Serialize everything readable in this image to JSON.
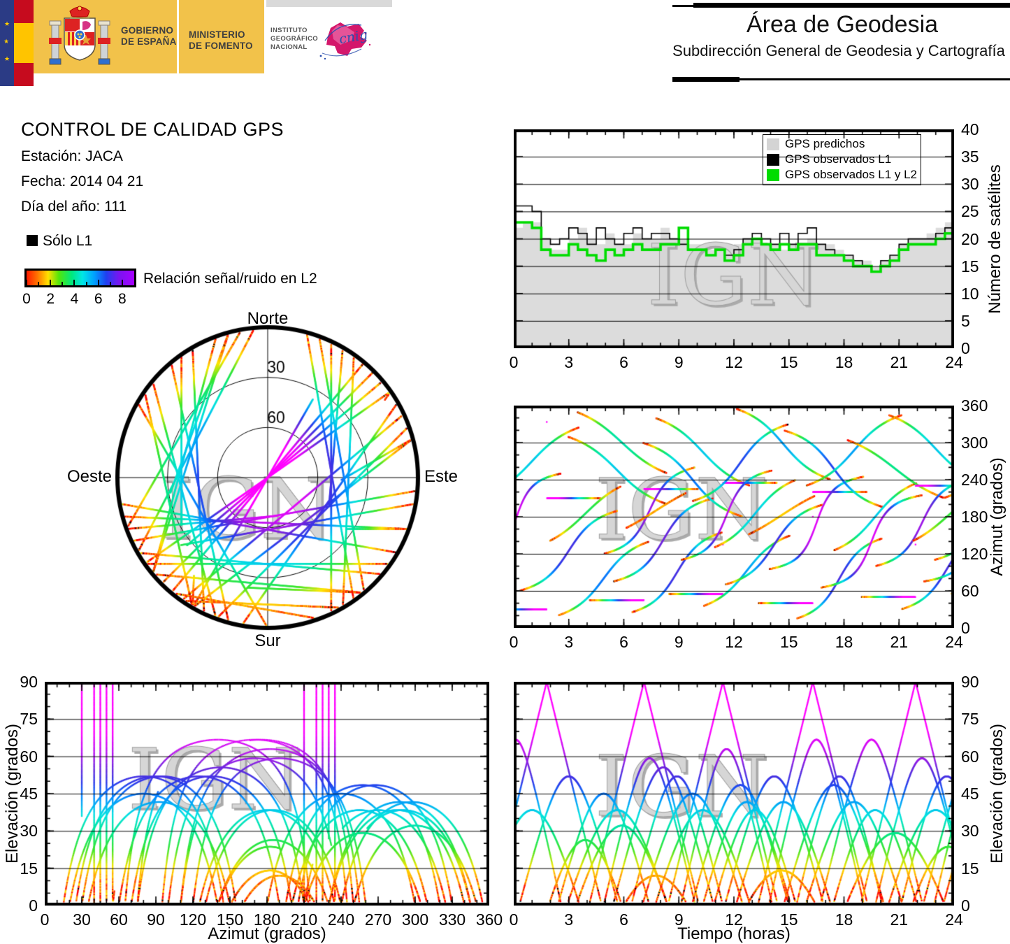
{
  "header": {
    "gobierno": [
      "GOBIERNO",
      "DE ESPAÑA"
    ],
    "ministerio": [
      "MINISTERIO",
      "DE FOMENTO"
    ],
    "instituto": [
      "INSTITUTO",
      "GEOGRÁFICO",
      "NACIONAL"
    ],
    "cnig": "cnig",
    "area_title": "Área de Geodesia",
    "area_subtitle": "Subdirección General de Geodesia y Cartografía"
  },
  "info": {
    "title": "CONTROL DE CALIDAD GPS",
    "station": "Estación: JACA",
    "date": "Fecha: 2014 04 21",
    "doy": "Día del año: 111",
    "legend_l1": "Sólo L1",
    "colorbar_label": "Relación señal/ruido en L2",
    "colorbar_ticks": [
      0,
      2,
      4,
      6,
      8
    ],
    "colorbar_max": 9
  },
  "watermark": "IGN",
  "palette": {
    "predicted_fill": "#dcdcdc",
    "observed_l1": "#000000",
    "observed_l1l2": "#00dc00",
    "grid": "#000000",
    "watermark_fill": "#d6d6d6",
    "watermark_shadow": "#ababab",
    "watermark_edge": "#9f9f9f",
    "colorbar": [
      [
        0,
        "#ff1a00"
      ],
      [
        0.1,
        "#ff7300"
      ],
      [
        0.2,
        "#ffe100"
      ],
      [
        0.3,
        "#52e60a"
      ],
      [
        0.42,
        "#00e87d"
      ],
      [
        0.52,
        "#00e6e6"
      ],
      [
        0.63,
        "#00a0ff"
      ],
      [
        0.74,
        "#1f40f0"
      ],
      [
        0.86,
        "#7a14f0"
      ],
      [
        1,
        "#a600ff"
      ]
    ],
    "snr_colormap": [
      [
        0,
        "#ff0000"
      ],
      [
        0.12,
        "#ff6e00"
      ],
      [
        0.22,
        "#ffe600"
      ],
      [
        0.32,
        "#3ce628"
      ],
      [
        0.42,
        "#00e68c"
      ],
      [
        0.52,
        "#00e1e1"
      ],
      [
        0.62,
        "#008cff"
      ],
      [
        0.7,
        "#283ceb"
      ],
      [
        0.78,
        "#6428dc"
      ],
      [
        0.86,
        "#aa14eb"
      ],
      [
        1,
        "#ff00ff"
      ]
    ]
  },
  "chart_data": [
    {
      "id": "sat_count",
      "type": "area",
      "xlabel": "",
      "ylabel": "Número de satélites",
      "xlim": [
        0,
        24
      ],
      "ylim": [
        0,
        40
      ],
      "xticks": [
        0,
        3,
        6,
        9,
        12,
        15,
        18,
        21,
        24
      ],
      "yticks": [
        0,
        5,
        10,
        15,
        20,
        25,
        30,
        35,
        40
      ],
      "grid": "horizontal",
      "legend_position": "top-right",
      "legend": [
        {
          "label": "GPS predichos",
          "color": "#d4d4d4"
        },
        {
          "label": "GPS observados L1",
          "color": "#000000"
        },
        {
          "label": "GPS observados L1 y L2",
          "color": "#00dc00"
        }
      ],
      "step_hours": 0.5,
      "series": {
        "predichos": [
          22,
          23,
          23,
          20,
          18,
          18,
          20,
          22,
          20,
          19,
          21,
          19,
          19,
          21,
          20,
          20,
          22,
          20,
          20,
          19,
          19,
          18,
          19,
          18,
          19,
          20,
          20,
          19,
          19,
          18,
          19,
          19,
          20,
          19,
          19,
          18,
          17,
          16,
          16,
          15,
          16,
          17,
          19,
          20,
          20,
          21,
          22,
          23,
          23
        ],
        "observados_l1": [
          26,
          26,
          25,
          20,
          19,
          20,
          22,
          21,
          19,
          22,
          20,
          19,
          21,
          22,
          20,
          21,
          21,
          20,
          19,
          18,
          18,
          17,
          18,
          17,
          18,
          20,
          21,
          20,
          19,
          21,
          19,
          21,
          22,
          19,
          18,
          17,
          17,
          16,
          15,
          14,
          16,
          17,
          19,
          20,
          20,
          20,
          21,
          22,
          23
        ],
        "observados_l1_l2": [
          23,
          23,
          22,
          18,
          17,
          17,
          19,
          18,
          17,
          16,
          18,
          17,
          18,
          19,
          18,
          18,
          19,
          19,
          22,
          18,
          18,
          17,
          18,
          16,
          17,
          19,
          20,
          19,
          18,
          19,
          18,
          19,
          19,
          17,
          17,
          17,
          16,
          15,
          15,
          14,
          15,
          16,
          18,
          19,
          19,
          19,
          20,
          21,
          23
        ]
      }
    },
    {
      "id": "azimuth_time",
      "type": "scatter",
      "xlabel": "",
      "ylabel": "Azimut (grados)",
      "xlim": [
        0,
        24
      ],
      "ylim": [
        0,
        360
      ],
      "xticks": [
        0,
        3,
        6,
        9,
        12,
        15,
        18,
        21,
        24
      ],
      "yticks": [
        0,
        60,
        120,
        180,
        240,
        300,
        360
      ],
      "grid": "horizontal",
      "source": "constellation",
      "x_field": "t",
      "y_field": "az"
    },
    {
      "id": "skyplot",
      "type": "polar-skyplot",
      "compass_labels": {
        "n": "Norte",
        "s": "Sur",
        "e": "Este",
        "w": "Oeste"
      },
      "elevation_rings": [
        30,
        60
      ],
      "source": "constellation"
    },
    {
      "id": "elev_azimuth",
      "type": "scatter",
      "xlabel": "Azimut (grados)",
      "ylabel": "Elevación (grados)",
      "xlim": [
        0,
        360
      ],
      "ylim": [
        0,
        90
      ],
      "xticks": [
        0,
        30,
        60,
        90,
        120,
        150,
        180,
        210,
        240,
        270,
        300,
        330,
        360
      ],
      "yticks": [
        0,
        15,
        30,
        45,
        60,
        75,
        90
      ],
      "grid": "horizontal",
      "source": "constellation",
      "x_field": "az",
      "y_field": "el"
    },
    {
      "id": "elev_time",
      "type": "scatter",
      "xlabel": "Tiempo (horas)",
      "ylabel": "Elevación (grados)",
      "xlim": [
        0,
        24
      ],
      "ylim": [
        0,
        90
      ],
      "xticks": [
        0,
        3,
        6,
        9,
        12,
        15,
        18,
        21,
        24
      ],
      "yticks": [
        0,
        15,
        30,
        45,
        60,
        75,
        90
      ],
      "grid": "horizontal",
      "source": "constellation",
      "x_field": "t",
      "y_field": "el"
    }
  ],
  "constellation": {
    "note": "GPS passes over station JACA; color encodes L2 signal/noise ratio (correlated with elevation)",
    "step_min": 1,
    "passes_format": [
      "az_rise_deg",
      "az_set_deg",
      "t_start_h",
      "dur_h"
    ],
    "passes": [
      [
        30,
        210,
        -1.2,
        6.0
      ],
      [
        60,
        190,
        0.3,
        5.4
      ],
      [
        100,
        250,
        -2.4,
        5.0
      ],
      [
        215,
        325,
        -1.6,
        5.2
      ],
      [
        140,
        230,
        1.9,
        4.0
      ],
      [
        20,
        140,
        2.4,
        5.0
      ],
      [
        310,
        200,
        2.9,
        5.5
      ],
      [
        350,
        250,
        3.4,
        5.0
      ],
      [
        45,
        225,
        4.1,
        6.0
      ],
      [
        120,
        260,
        4.9,
        5.0
      ],
      [
        75,
        210,
        5.4,
        5.5
      ],
      [
        160,
        220,
        6.0,
        3.5
      ],
      [
        25,
        155,
        6.4,
        5.0
      ],
      [
        300,
        180,
        7.0,
        5.5
      ],
      [
        340,
        230,
        7.7,
        5.2
      ],
      [
        55,
        235,
        8.4,
        6.0
      ],
      [
        110,
        255,
        9.1,
        5.0
      ],
      [
        205,
        330,
        9.7,
        5.3
      ],
      [
        35,
        150,
        10.3,
        4.8
      ],
      [
        130,
        240,
        10.9,
        4.5
      ],
      [
        70,
        200,
        11.5,
        5.4
      ],
      [
        355,
        240,
        12.1,
        5.2
      ],
      [
        150,
        215,
        12.7,
        3.8
      ],
      [
        40,
        220,
        13.3,
        6.0
      ],
      [
        95,
        245,
        13.9,
        5.2
      ],
      [
        320,
        195,
        14.7,
        5.5
      ],
      [
        15,
        145,
        15.4,
        4.7
      ],
      [
        230,
        345,
        15.9,
        5.3
      ],
      [
        65,
        215,
        16.7,
        5.6
      ],
      [
        125,
        235,
        17.4,
        4.6
      ],
      [
        305,
        210,
        18.1,
        5.4
      ],
      [
        50,
        230,
        18.9,
        6.0
      ],
      [
        100,
        240,
        19.7,
        5.1
      ],
      [
        345,
        235,
        20.4,
        5.2
      ],
      [
        30,
        160,
        21.1,
        5.0
      ],
      [
        140,
        225,
        21.7,
        4.0
      ],
      [
        75,
        225,
        22.3,
        6.0
      ],
      [
        110,
        250,
        22.9,
        5.0
      ],
      [
        210,
        335,
        23.4,
        5.0
      ],
      [
        55,
        195,
        23.8,
        5.5
      ]
    ]
  }
}
